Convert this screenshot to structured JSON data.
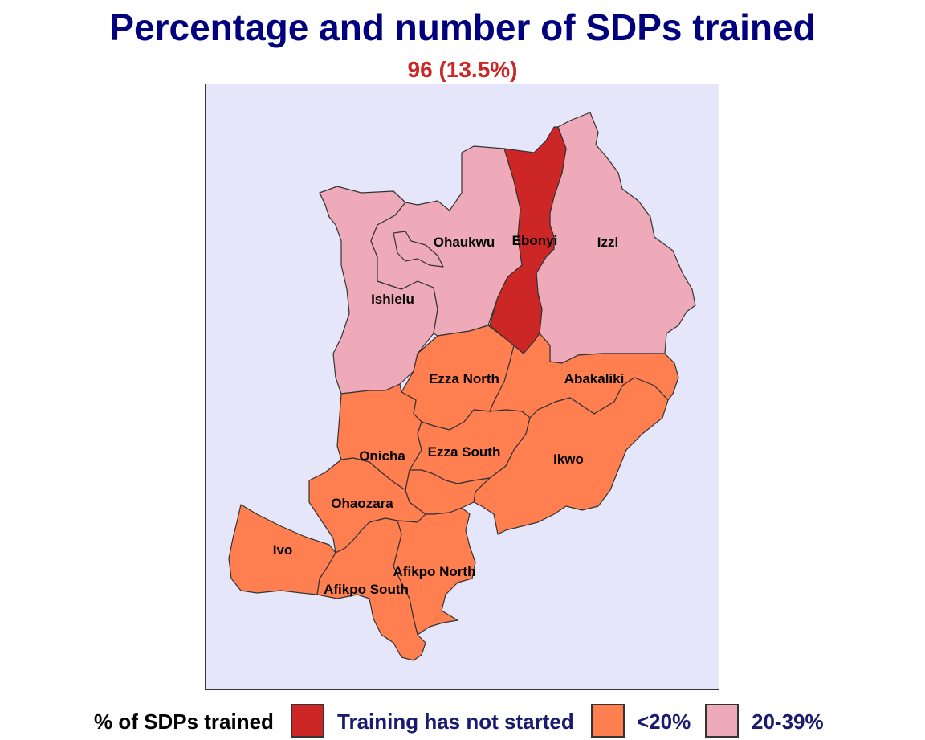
{
  "title": "Percentage and number of SDPs trained",
  "subtitle": "96 (13.5%)",
  "colors": {
    "title": "#00007f",
    "subtitle": "#cd2626",
    "background": "#e6e6fa",
    "not_started": "#cd2626",
    "lt20": "#ff7f50",
    "p20_39": "#eeaab8"
  },
  "map": {
    "labels": {
      "ohaukwu": "Ohaukwu",
      "ebonyi": "Ebonyi",
      "izzi": "Izzi",
      "ishielu": "Ishielu",
      "ezza_north": "Ezza North",
      "abakaliki": "Abakaliki",
      "onicha": "Onicha",
      "ezza_south": "Ezza South",
      "ikwo": "Ikwo",
      "ohaozara": "Ohaozara",
      "ivo": "Ivo",
      "afikpo_north": "Afikpo North",
      "afikpo_south": "Afikpo South"
    }
  },
  "legend": {
    "title": "% of SDPs trained",
    "items": [
      {
        "label": "Training has not started",
        "color": "#cd2626"
      },
      {
        "label": "<20%",
        "color": "#ff7f50"
      },
      {
        "label": "20-39%",
        "color": "#eeaab8"
      }
    ]
  }
}
